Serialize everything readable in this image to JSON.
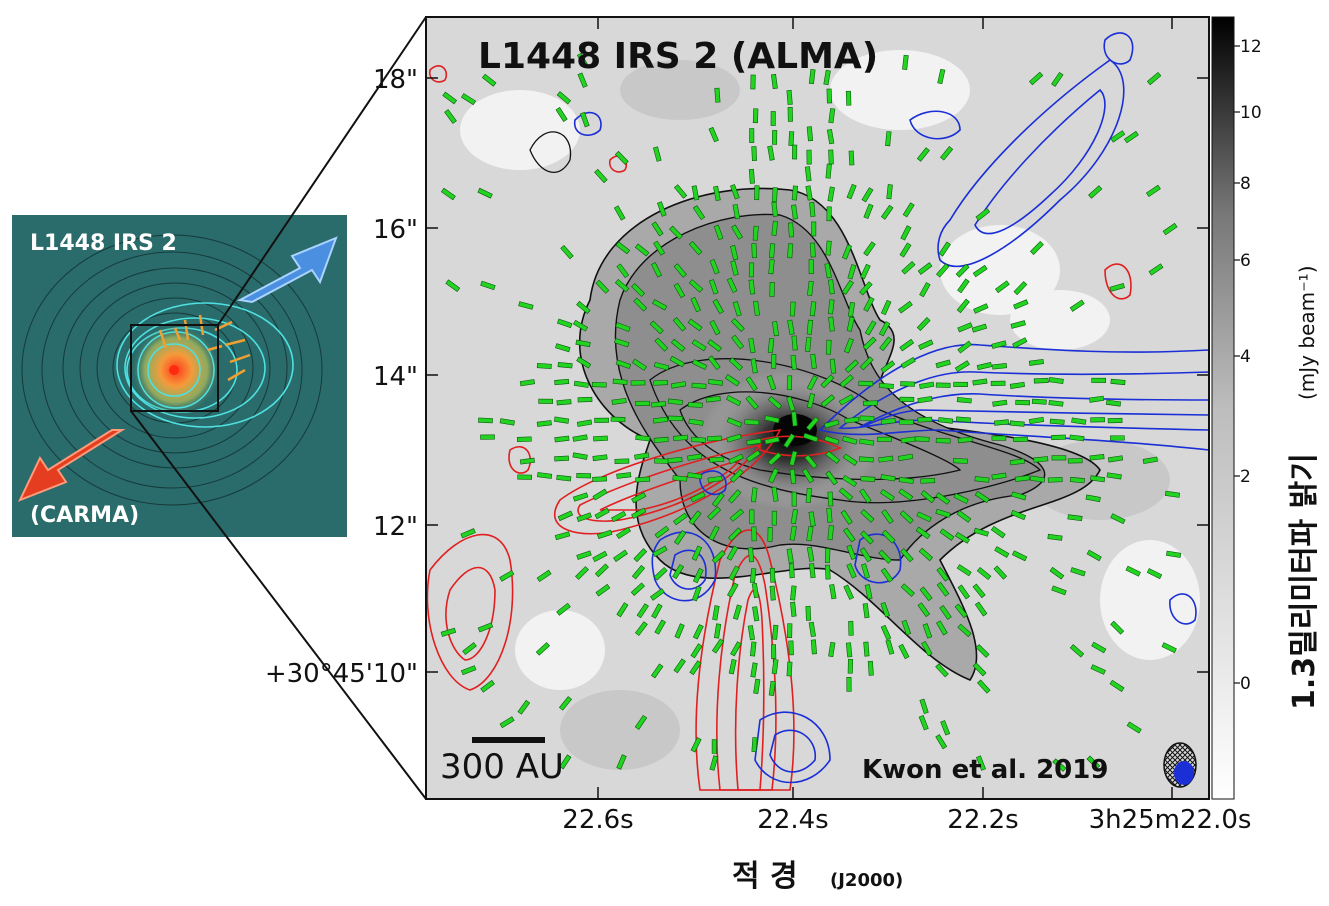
{
  "inset": {
    "name_label": "L1448 IRS 2",
    "instrument_label": "(CARMA)"
  },
  "main_panel": {
    "title": "L1448 IRS 2  (ALMA)",
    "scale_bar_label": "300 AU",
    "citation": "Kwon et al. 2019",
    "y_ticks": [
      "18\"",
      "16\"",
      "14\"",
      "12\"",
      "+30°45'10\""
    ],
    "x_ticks": [
      "22.6s",
      "22.4s",
      "22.2s",
      "3h25m22.0s"
    ],
    "x_axis_title": "적 경",
    "x_axis_epoch": "(J2000)"
  },
  "colorbar": {
    "ticks": [
      "12",
      "10",
      "8",
      "6",
      "4",
      "2",
      "0"
    ],
    "label_main": "1.3밀리미터파 밝기",
    "label_unit": "(mJy beam⁻¹)"
  },
  "colors": {
    "red_lobe": "#e02020",
    "blue_lobe": "#1a2fd6",
    "vectors": "#22d322",
    "inset_background": "#2a6b6b",
    "inset_red_arrow": "#e53d1f",
    "inset_blue_arrow": "#4a8fe0"
  }
}
